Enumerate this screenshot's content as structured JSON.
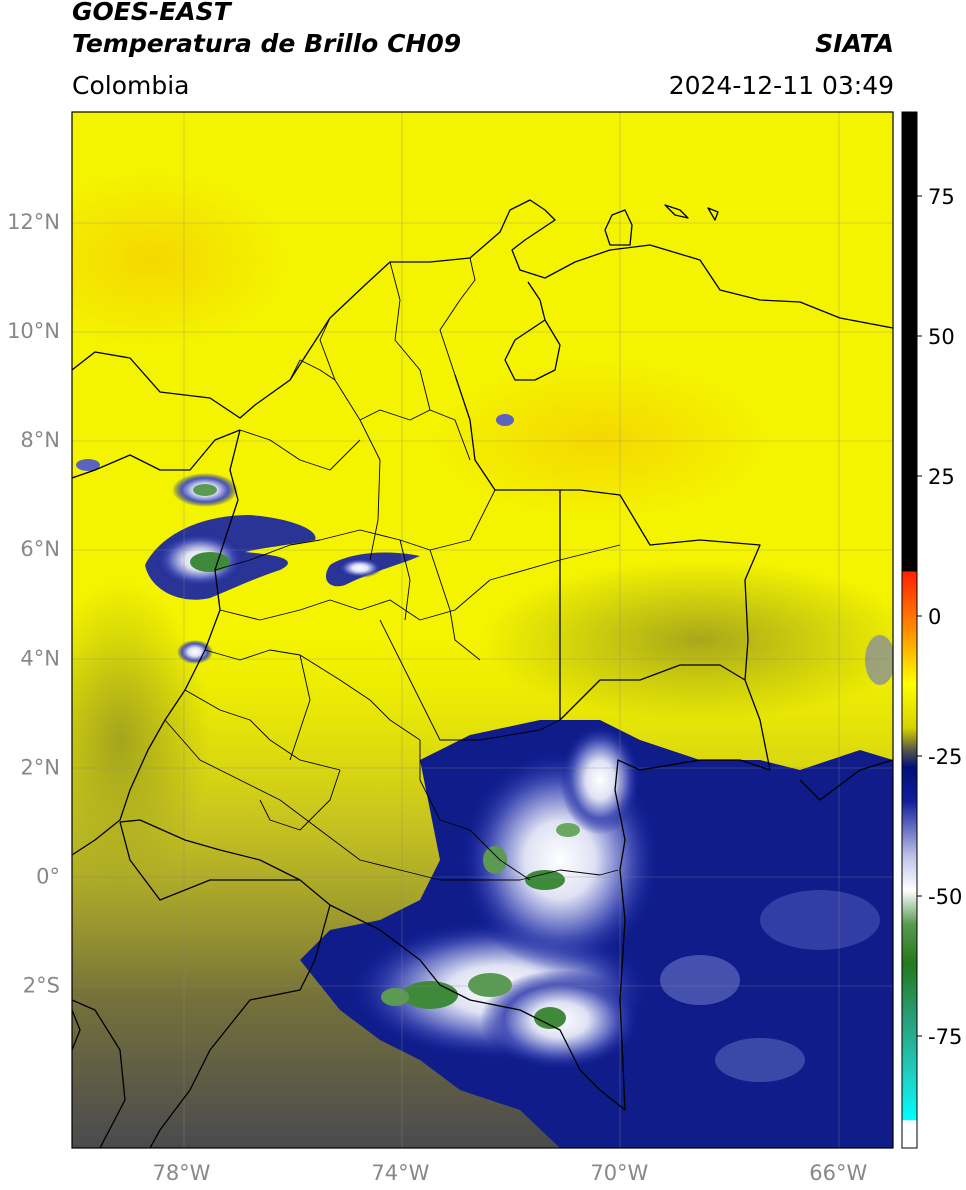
{
  "header": {
    "satellite": "GOES-EAST",
    "product": "Temperatura de Brillo CH09",
    "brand": "SIATA",
    "region": "Colombia",
    "timestamp": "2024-12-11 03:49"
  },
  "map": {
    "lon_range": [
      -80,
      -65
    ],
    "lat_range": [
      -5,
      14
    ],
    "lat_ticks": [
      {
        "value": 12,
        "label": "12°N"
      },
      {
        "value": 10,
        "label": "10°N"
      },
      {
        "value": 8,
        "label": "8°N"
      },
      {
        "value": 6,
        "label": "6°N"
      },
      {
        "value": 4,
        "label": "4°N"
      },
      {
        "value": 2,
        "label": "2°N"
      },
      {
        "value": 0,
        "label": "0°"
      },
      {
        "value": -2,
        "label": "2°S"
      }
    ],
    "lon_ticks": [
      {
        "value": -78,
        "label": "78°W"
      },
      {
        "value": -74,
        "label": "74°W"
      },
      {
        "value": -70,
        "label": "70°W"
      },
      {
        "value": -66,
        "label": "66°W"
      }
    ],
    "gridlines": true
  },
  "colorbar": {
    "range": [
      -95,
      90
    ],
    "ticks": [
      75,
      50,
      25,
      0,
      -25,
      -50,
      -75
    ],
    "stops": [
      {
        "value": 90,
        "color": "#000000"
      },
      {
        "value": 8,
        "color": "#000000"
      },
      {
        "value": 7.9,
        "color": "#ff2200"
      },
      {
        "value": -2,
        "color": "#ff8800"
      },
      {
        "value": -12,
        "color": "#ffff00"
      },
      {
        "value": -20,
        "color": "#d6d300"
      },
      {
        "value": -24,
        "color": "#55554a"
      },
      {
        "value": -27,
        "color": "#000f7a"
      },
      {
        "value": -33,
        "color": "#101e9a"
      },
      {
        "value": -43,
        "color": "#c0c4ea"
      },
      {
        "value": -49,
        "color": "#ffffff"
      },
      {
        "value": -55,
        "color": "#5a9a52"
      },
      {
        "value": -62,
        "color": "#237a1c"
      },
      {
        "value": -72,
        "color": "#28a07a"
      },
      {
        "value": -82,
        "color": "#20d0c2"
      },
      {
        "value": -90,
        "color": "#00ffff"
      },
      {
        "value": -90.1,
        "color": "#ffffff"
      },
      {
        "value": -95,
        "color": "#ffffff"
      }
    ]
  }
}
